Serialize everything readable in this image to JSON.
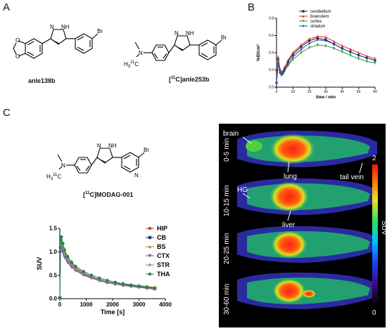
{
  "panels": {
    "a": "A",
    "b": "B",
    "c": "C"
  },
  "compounds": {
    "anle138b": {
      "name": "anle138b",
      "atoms": {
        "nh": "NH",
        "n": "N",
        "br": "Br",
        "o1": "O",
        "o2": "O"
      }
    },
    "anle253b": {
      "name_sup": "11",
      "name_pre": "[",
      "name_mid": "C]anle253b",
      "atoms": {
        "nh": "NH",
        "n": "N",
        "br": "Br",
        "namine": "N",
        "h3c": "H",
        "h3c_sub": "3",
        "h3c_sup": "11",
        "h3c_c": "C"
      }
    },
    "modag": {
      "name_pre": "[",
      "name_sup": "11",
      "name_mid": "C]MODAG-001",
      "atoms": {
        "nh": "NH",
        "n": "N",
        "br": "Br",
        "npyr": "N",
        "namine": "N",
        "h3c": "H",
        "h3c_sub": "3",
        "h3c_sup": "11",
        "h3c_c": "C"
      }
    }
  },
  "pet_image": {
    "frames": [
      "0-5 min",
      "10-15 min",
      "20-25 min",
      "30-60 min"
    ],
    "annotations": {
      "brain": "brain",
      "lung": "lung",
      "tail_vein": "tail vein",
      "hg": "HG",
      "liver": "liver"
    },
    "colorbar": {
      "max": "2",
      "min": "0",
      "label": "SUV"
    }
  },
  "chart_data": [
    {
      "type": "line",
      "panel": "B",
      "ylabel": "%ID/cm³",
      "xlabel": "time / min",
      "xlim": [
        0,
        60
      ],
      "ylim": [
        0,
        0.8
      ],
      "xticks": [
        0,
        10,
        20,
        30,
        40,
        50,
        60
      ],
      "yticks": [
        0.0,
        0.2,
        0.4,
        0.6,
        0.8
      ],
      "x": [
        0,
        1,
        2,
        3,
        4,
        5,
        7,
        10,
        15,
        20,
        25,
        30,
        35,
        40,
        45,
        50,
        55,
        60
      ],
      "series": [
        {
          "name": "cerebellum",
          "color": "#222222",
          "marker": "square",
          "values": [
            0.05,
            0.32,
            0.2,
            0.16,
            0.18,
            0.22,
            0.3,
            0.38,
            0.47,
            0.54,
            0.57,
            0.55,
            0.5,
            0.45,
            0.41,
            0.37,
            0.34,
            0.31
          ]
        },
        {
          "name": "brainstem",
          "color": "#d62728",
          "marker": "triangle",
          "values": [
            0.05,
            0.35,
            0.22,
            0.17,
            0.19,
            0.23,
            0.31,
            0.4,
            0.49,
            0.56,
            0.59,
            0.58,
            0.53,
            0.48,
            0.44,
            0.4,
            0.36,
            0.33
          ]
        },
        {
          "name": "cortex",
          "color": "#2ca02c",
          "marker": "triangle-down",
          "values": [
            0.05,
            0.3,
            0.19,
            0.15,
            0.16,
            0.19,
            0.25,
            0.32,
            0.4,
            0.46,
            0.49,
            0.48,
            0.45,
            0.41,
            0.37,
            0.33,
            0.3,
            0.28
          ]
        },
        {
          "name": "striatum",
          "color": "#1f3fbf",
          "marker": "diamond",
          "values": [
            0.05,
            0.28,
            0.17,
            0.14,
            0.16,
            0.2,
            0.27,
            0.35,
            0.44,
            0.51,
            0.55,
            0.54,
            0.5,
            0.45,
            0.41,
            0.37,
            0.34,
            0.31
          ]
        }
      ]
    },
    {
      "type": "line",
      "panel": "C",
      "ylabel": "SUV",
      "xlabel": "Time [s]",
      "xlim": [
        0,
        4000
      ],
      "ylim": [
        0,
        1.5
      ],
      "xticks": [
        0,
        1000,
        2000,
        3000,
        4000
      ],
      "yticks": [
        0.0,
        0.5,
        1.0,
        1.5
      ],
      "x": [
        0,
        30,
        60,
        120,
        180,
        300,
        450,
        600,
        900,
        1200,
        1500,
        1800,
        2100,
        2400,
        2700,
        3000,
        3300,
        3600
      ],
      "series": [
        {
          "name": "HIP",
          "color": "#c0392b",
          "marker": "circle",
          "values": [
            0.02,
            1.05,
            1.12,
            1.02,
            0.92,
            0.8,
            0.7,
            0.62,
            0.52,
            0.45,
            0.4,
            0.35,
            0.32,
            0.29,
            0.27,
            0.25,
            0.23,
            0.21
          ]
        },
        {
          "name": "CB",
          "color": "#1f3a8a",
          "marker": "square",
          "values": [
            0.02,
            1.1,
            1.18,
            1.06,
            0.95,
            0.82,
            0.72,
            0.64,
            0.54,
            0.47,
            0.41,
            0.36,
            0.33,
            0.3,
            0.28,
            0.26,
            0.24,
            0.22
          ]
        },
        {
          "name": "BS",
          "color": "#c8881c",
          "marker": "triangle",
          "values": [
            0.02,
            1.15,
            1.2,
            1.1,
            0.98,
            0.86,
            0.75,
            0.67,
            0.57,
            0.5,
            0.44,
            0.39,
            0.35,
            0.32,
            0.3,
            0.28,
            0.26,
            0.24
          ]
        },
        {
          "name": "CTX",
          "color": "#8e44ad",
          "marker": "triangle-down",
          "values": [
            0.02,
            1.0,
            1.08,
            0.98,
            0.88,
            0.77,
            0.67,
            0.6,
            0.5,
            0.44,
            0.38,
            0.34,
            0.31,
            0.28,
            0.26,
            0.24,
            0.22,
            0.2
          ]
        },
        {
          "name": "STR",
          "color": "#7f8c8d",
          "marker": "diamond",
          "values": [
            0.02,
            1.05,
            1.14,
            1.04,
            0.93,
            0.81,
            0.71,
            0.63,
            0.53,
            0.46,
            0.4,
            0.36,
            0.32,
            0.29,
            0.27,
            0.25,
            0.23,
            0.21
          ]
        },
        {
          "name": "THA",
          "color": "#1e8449",
          "marker": "circle",
          "values": [
            0.02,
            1.25,
            1.32,
            1.18,
            1.04,
            0.9,
            0.78,
            0.69,
            0.58,
            0.5,
            0.44,
            0.39,
            0.35,
            0.32,
            0.29,
            0.27,
            0.25,
            0.23
          ]
        }
      ]
    }
  ]
}
